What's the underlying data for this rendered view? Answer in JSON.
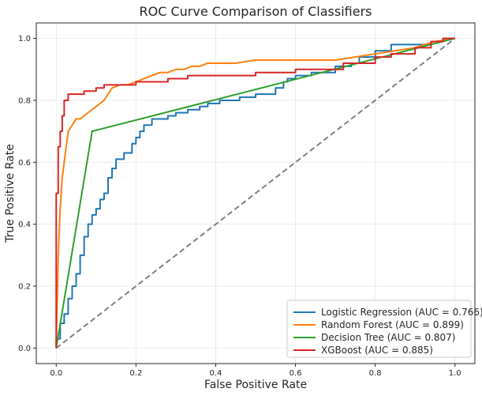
{
  "chart_data": {
    "type": "line",
    "title": "ROC Curve Comparison of Classifiers",
    "xlabel": "False Positive Rate",
    "ylabel": "True Positive Rate",
    "xlim": [
      -0.05,
      1.05
    ],
    "ylim": [
      -0.05,
      1.05
    ],
    "xticks": [
      0.0,
      0.2,
      0.4,
      0.6,
      0.8,
      1.0
    ],
    "yticks": [
      0.0,
      0.2,
      0.4,
      0.6,
      0.8,
      1.0
    ],
    "xtick_labels": [
      "0.0",
      "0.2",
      "0.4",
      "0.6",
      "0.8",
      "1.0"
    ],
    "ytick_labels": [
      "0.0",
      "0.2",
      "0.4",
      "0.6",
      "0.8",
      "1.0"
    ],
    "grid": true,
    "legend_position": "lower-right",
    "series": [
      {
        "name": "Logistic Regression (AUC = 0.766)",
        "color": "#1f77b4",
        "x": [
          0.0,
          0.0,
          0.01,
          0.01,
          0.02,
          0.02,
          0.03,
          0.03,
          0.04,
          0.04,
          0.05,
          0.05,
          0.06,
          0.06,
          0.07,
          0.07,
          0.08,
          0.08,
          0.09,
          0.09,
          0.1,
          0.1,
          0.11,
          0.11,
          0.12,
          0.12,
          0.13,
          0.13,
          0.14,
          0.14,
          0.15,
          0.15,
          0.17,
          0.17,
          0.19,
          0.19,
          0.2,
          0.2,
          0.21,
          0.21,
          0.22,
          0.22,
          0.24,
          0.24,
          0.26,
          0.26,
          0.28,
          0.28,
          0.3,
          0.3,
          0.33,
          0.33,
          0.36,
          0.36,
          0.38,
          0.38,
          0.41,
          0.41,
          0.46,
          0.46,
          0.5,
          0.5,
          0.55,
          0.55,
          0.57,
          0.57,
          0.58,
          0.58,
          0.6,
          0.6,
          0.64,
          0.64,
          0.7,
          0.7,
          0.74,
          0.74,
          0.76,
          0.76,
          0.8,
          0.8,
          0.84,
          0.84,
          0.88,
          0.88,
          0.94,
          0.94,
          0.97,
          0.97,
          1.0
        ],
        "y": [
          0.0,
          0.03,
          0.03,
          0.08,
          0.08,
          0.11,
          0.11,
          0.16,
          0.16,
          0.2,
          0.2,
          0.24,
          0.24,
          0.3,
          0.3,
          0.36,
          0.36,
          0.4,
          0.4,
          0.43,
          0.43,
          0.45,
          0.45,
          0.48,
          0.48,
          0.5,
          0.5,
          0.55,
          0.55,
          0.58,
          0.58,
          0.61,
          0.61,
          0.63,
          0.63,
          0.66,
          0.66,
          0.68,
          0.68,
          0.7,
          0.7,
          0.72,
          0.72,
          0.74,
          0.74,
          0.74,
          0.74,
          0.75,
          0.75,
          0.76,
          0.76,
          0.77,
          0.77,
          0.78,
          0.78,
          0.79,
          0.79,
          0.8,
          0.8,
          0.81,
          0.81,
          0.82,
          0.82,
          0.84,
          0.84,
          0.86,
          0.86,
          0.87,
          0.87,
          0.88,
          0.88,
          0.89,
          0.89,
          0.91,
          0.91,
          0.92,
          0.92,
          0.94,
          0.94,
          0.96,
          0.96,
          0.98,
          0.98,
          0.98,
          0.98,
          0.99,
          0.99,
          1.0,
          1.0
        ]
      },
      {
        "name": "Random Forest (AUC = 0.899)",
        "color": "#ff7f0e",
        "x": [
          0.0,
          0.005,
          0.01,
          0.015,
          0.02,
          0.025,
          0.03,
          0.04,
          0.05,
          0.06,
          0.07,
          0.08,
          0.09,
          0.1,
          0.11,
          0.12,
          0.13,
          0.14,
          0.16,
          0.18,
          0.2,
          0.22,
          0.24,
          0.26,
          0.28,
          0.3,
          0.32,
          0.34,
          0.36,
          0.38,
          0.4,
          0.45,
          0.5,
          0.55,
          0.6,
          0.65,
          0.7,
          0.75,
          0.8,
          0.85,
          0.9,
          0.95,
          1.0
        ],
        "y": [
          0.0,
          0.3,
          0.45,
          0.55,
          0.6,
          0.65,
          0.7,
          0.72,
          0.74,
          0.74,
          0.75,
          0.76,
          0.77,
          0.78,
          0.79,
          0.8,
          0.82,
          0.84,
          0.85,
          0.85,
          0.86,
          0.87,
          0.88,
          0.89,
          0.89,
          0.9,
          0.9,
          0.91,
          0.91,
          0.92,
          0.92,
          0.92,
          0.93,
          0.93,
          0.93,
          0.93,
          0.93,
          0.94,
          0.95,
          0.96,
          0.97,
          0.99,
          1.0
        ]
      },
      {
        "name": "Decision Tree (AUC = 0.807)",
        "color": "#2ca02c",
        "x": [
          0.0,
          0.09,
          1.0
        ],
        "y": [
          0.0,
          0.7,
          1.0
        ]
      },
      {
        "name": "XGBoost (AUC = 0.885)",
        "color": "#d62728",
        "x": [
          0.0,
          0.0,
          0.005,
          0.005,
          0.01,
          0.01,
          0.015,
          0.015,
          0.02,
          0.02,
          0.03,
          0.03,
          0.07,
          0.07,
          0.1,
          0.1,
          0.12,
          0.12,
          0.2,
          0.2,
          0.28,
          0.28,
          0.33,
          0.33,
          0.5,
          0.5,
          0.6,
          0.6,
          0.72,
          0.72,
          0.8,
          0.8,
          0.84,
          0.84,
          0.9,
          0.9,
          0.94,
          0.94,
          0.97,
          0.97,
          1.0
        ],
        "y": [
          0.0,
          0.5,
          0.5,
          0.65,
          0.65,
          0.7,
          0.7,
          0.75,
          0.75,
          0.8,
          0.8,
          0.82,
          0.82,
          0.83,
          0.83,
          0.84,
          0.84,
          0.85,
          0.85,
          0.86,
          0.86,
          0.87,
          0.87,
          0.88,
          0.88,
          0.89,
          0.89,
          0.9,
          0.9,
          0.92,
          0.92,
          0.94,
          0.94,
          0.95,
          0.95,
          0.97,
          0.97,
          0.99,
          0.99,
          1.0,
          1.0
        ]
      }
    ],
    "reference_line": {
      "x": [
        0.0,
        1.0
      ],
      "y": [
        0.0,
        1.0
      ],
      "color": "#808080",
      "style": "dashed"
    }
  }
}
